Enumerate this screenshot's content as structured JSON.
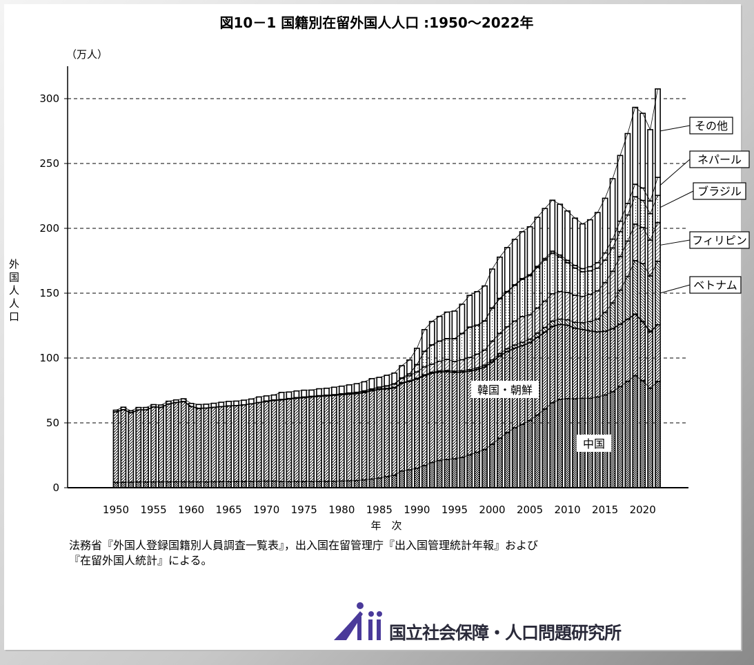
{
  "chart_data": {
    "type": "bar",
    "stacked": true,
    "title": "図10－1 国籍別在留外国人人口 :1950～2022年",
    "ylabel": "外国人人口",
    "yunit": "（万人）",
    "xlabel": "年　次",
    "ylim": [
      0,
      320
    ],
    "yticks": [
      0,
      50,
      100,
      150,
      200,
      250,
      300
    ],
    "xticks": [
      1950,
      1955,
      1960,
      1965,
      1970,
      1975,
      1980,
      1985,
      1990,
      1995,
      2000,
      2005,
      2010,
      2015,
      2020
    ],
    "grid": true,
    "years_start": 1950,
    "years_end": 2022,
    "total": [
      59.8,
      62.1,
      59.3,
      61.9,
      61.9,
      64.1,
      63.8,
      66.7,
      67.7,
      68.6,
      65.0,
      64.2,
      64.4,
      65.1,
      65.9,
      66.6,
      66.8,
      67.5,
      68.4,
      70.0,
      70.8,
      71.5,
      73.5,
      73.8,
      74.6,
      75.2,
      75.3,
      76.3,
      76.7,
      77.5,
      78.3,
      79.3,
      80.2,
      81.7,
      84.1,
      85.1,
      86.7,
      88.4,
      94.1,
      98.5,
      107.5,
      121.9,
      128.2,
      132.1,
      135.4,
      136.2,
      141.5,
      148.3,
      151.2,
      155.6,
      168.6,
      177.8,
      185.2,
      191.5,
      197.4,
      201.2,
      208.5,
      215.3,
      221.7,
      218.6,
      213.4,
      207.9,
      203.4,
      206.6,
      212.2,
      223.2,
      238.3,
      256.2,
      273.1,
      293.3,
      288.7,
      276.1,
      307.5
    ],
    "series": [
      {
        "name": "中国",
        "pattern": "checker",
        "values": [
          4.0,
          4.2,
          4.3,
          4.4,
          4.4,
          4.5,
          4.5,
          4.5,
          4.6,
          4.6,
          4.5,
          4.5,
          4.5,
          4.6,
          4.7,
          4.7,
          4.8,
          4.8,
          4.9,
          5.0,
          5.1,
          5.1,
          4.8,
          4.7,
          4.7,
          4.8,
          4.9,
          4.9,
          4.9,
          5.0,
          5.2,
          5.3,
          5.6,
          6.0,
          6.7,
          7.5,
          8.5,
          9.6,
          12.9,
          13.8,
          15.0,
          17.1,
          19.5,
          21.0,
          21.8,
          22.3,
          23.4,
          25.3,
          27.3,
          29.4,
          33.5,
          38.2,
          42.5,
          46.2,
          48.8,
          51.9,
          56.1,
          60.7,
          65.5,
          68.1,
          68.7,
          68.5,
          69.0,
          69.0,
          70.0,
          71.5,
          74.0,
          78.0,
          82.0,
          86.5,
          82.5,
          76.5,
          82.0
        ]
      },
      {
        "name": "韓国・朝鮮",
        "pattern": "hatch",
        "values": [
          54.5,
          56.0,
          53.5,
          55.6,
          55.6,
          57.8,
          57.5,
          60.1,
          61.1,
          61.9,
          58.1,
          56.7,
          56.9,
          57.4,
          57.8,
          58.4,
          58.5,
          59.1,
          59.8,
          60.7,
          61.4,
          62.2,
          62.9,
          63.7,
          64.3,
          64.7,
          65.1,
          65.6,
          65.9,
          66.2,
          66.5,
          66.8,
          66.9,
          67.4,
          68.0,
          68.3,
          67.7,
          67.3,
          67.7,
          68.1,
          68.8,
          69.3,
          68.8,
          68.2,
          67.6,
          66.6,
          65.7,
          64.5,
          63.8,
          63.6,
          63.5,
          63.3,
          62.5,
          61.4,
          60.7,
          59.9,
          59.8,
          59.3,
          58.9,
          57.8,
          56.6,
          54.5,
          53.0,
          51.9,
          50.1,
          49.1,
          48.5,
          48.1,
          47.9,
          47.4,
          45.5,
          43.6,
          43.7
        ]
      },
      {
        "name": "ベトナム",
        "pattern": "hatch2",
        "values": [
          0,
          0,
          0,
          0,
          0,
          0,
          0,
          0,
          0,
          0,
          0,
          0,
          0,
          0,
          0,
          0,
          0,
          0,
          0,
          0,
          0,
          0,
          0,
          0,
          0,
          0,
          0,
          0,
          0,
          0,
          0.1,
          0.2,
          0.2,
          0.3,
          0.3,
          0.4,
          0.4,
          0.5,
          0.5,
          0.5,
          0.6,
          0.7,
          0.8,
          0.9,
          1.0,
          1.0,
          1.1,
          1.2,
          1.3,
          1.5,
          1.6,
          1.9,
          2.2,
          2.4,
          2.6,
          2.8,
          3.3,
          3.6,
          4.1,
          4.1,
          4.2,
          4.5,
          5.2,
          7.2,
          9.9,
          14.7,
          20.0,
          26.2,
          33.1,
          41.2,
          44.8,
          43.2,
          48.9
        ]
      },
      {
        "name": "フィリピン",
        "pattern": "hatch3",
        "values": [
          0,
          0,
          0,
          0,
          0,
          0,
          0,
          0,
          0,
          0,
          0,
          0,
          0,
          0,
          0,
          0,
          0,
          0,
          0,
          0,
          0.3,
          0.3,
          0.3,
          0.3,
          0.4,
          0.4,
          0.4,
          0.4,
          0.5,
          0.5,
          0.5,
          0.6,
          0.7,
          0.8,
          1.0,
          1.2,
          1.8,
          2.5,
          3.2,
          3.9,
          4.9,
          6.1,
          6.2,
          7.4,
          8.6,
          7.4,
          8.5,
          9.4,
          10.6,
          11.6,
          14.4,
          15.6,
          16.9,
          18.5,
          19.9,
          18.7,
          19.3,
          20.3,
          21.1,
          21.2,
          21.0,
          20.9,
          20.3,
          21.0,
          21.8,
          22.9,
          24.4,
          26.0,
          27.2,
          28.2,
          27.9,
          27.6,
          29.9
        ]
      },
      {
        "name": "ブラジル",
        "pattern": "dots",
        "values": [
          0,
          0,
          0,
          0,
          0,
          0,
          0,
          0,
          0,
          0,
          0,
          0,
          0,
          0,
          0,
          0,
          0,
          0,
          0,
          0,
          0.1,
          0.1,
          0.1,
          0.1,
          0.1,
          0.1,
          0.1,
          0.1,
          0.1,
          0.1,
          0.2,
          0.2,
          0.2,
          0.2,
          0.2,
          0.2,
          0.2,
          0.3,
          0.4,
          1.5,
          5.6,
          11.9,
          14.8,
          15.5,
          15.9,
          17.6,
          20.2,
          23.3,
          22.2,
          22.4,
          25.4,
          26.6,
          26.8,
          27.5,
          28.7,
          30.2,
          31.3,
          31.7,
          31.3,
          26.7,
          23.0,
          21.0,
          19.0,
          18.1,
          17.5,
          17.3,
          18.0,
          19.2,
          20.1,
          21.1,
          20.8,
          20.4,
          20.9
        ]
      },
      {
        "name": "ネパール",
        "pattern": "blank",
        "values": [
          0,
          0,
          0,
          0,
          0,
          0,
          0,
          0,
          0,
          0,
          0,
          0,
          0,
          0,
          0,
          0,
          0,
          0,
          0,
          0,
          0,
          0,
          0,
          0,
          0,
          0,
          0,
          0,
          0,
          0,
          0,
          0,
          0,
          0,
          0,
          0,
          0,
          0,
          0,
          0,
          0.1,
          0.1,
          0.1,
          0.1,
          0.1,
          0.1,
          0.1,
          0.2,
          0.2,
          0.2,
          0.3,
          0.4,
          0.4,
          0.5,
          0.6,
          0.7,
          0.9,
          1.2,
          1.5,
          1.5,
          1.8,
          2.0,
          2.4,
          3.2,
          4.2,
          5.5,
          6.8,
          8.0,
          8.9,
          9.6,
          9.6,
          9.8,
          13.9
        ]
      },
      {
        "name": "その他",
        "pattern": "blank",
        "values": "remainder_of_total"
      }
    ],
    "annotations": [
      "韓国・朝鮮",
      "中国"
    ],
    "legend_labels": [
      "その他",
      "ネパール",
      "ブラジル",
      "フィリピン",
      "ベトナム"
    ]
  },
  "source_text_line1": "法務省『外国人登録国籍別人員調査一覧表』，出入国在留管理庁『出入国管理統計年報』および",
  "source_text_line2": "『在留外国人統計』による。",
  "logo_text": "国立社会保障・人口問題研究所"
}
